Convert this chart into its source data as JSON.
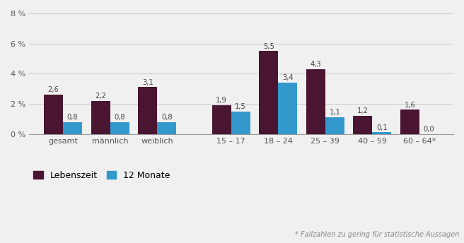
{
  "categories": [
    "gesamt",
    "männlich",
    "weiblich",
    "15 – 17",
    "18 – 24",
    "25 – 39",
    "40 – 59",
    "60 – 64*"
  ],
  "lebenszeit": [
    2.6,
    2.2,
    3.1,
    1.9,
    5.5,
    4.3,
    1.2,
    1.6
  ],
  "monate12": [
    0.8,
    0.8,
    0.8,
    1.5,
    3.4,
    1.1,
    0.1,
    0.0
  ],
  "color_lebenszeit": "#4a1530",
  "color_monate12": "#3399cc",
  "ylim": [
    0,
    8
  ],
  "yticks": [
    0,
    2,
    4,
    6,
    8
  ],
  "ytick_labels": [
    "0 %",
    "2 %",
    "4 %",
    "6 %",
    "8 %"
  ],
  "legend_lebenszeit": "Lebenszeit",
  "legend_monate12": "12 Monate",
  "footnote": "* Fallzahlen zu gering für statistische Aussagen",
  "bar_width": 0.32,
  "background_color": "#f0f0f0"
}
